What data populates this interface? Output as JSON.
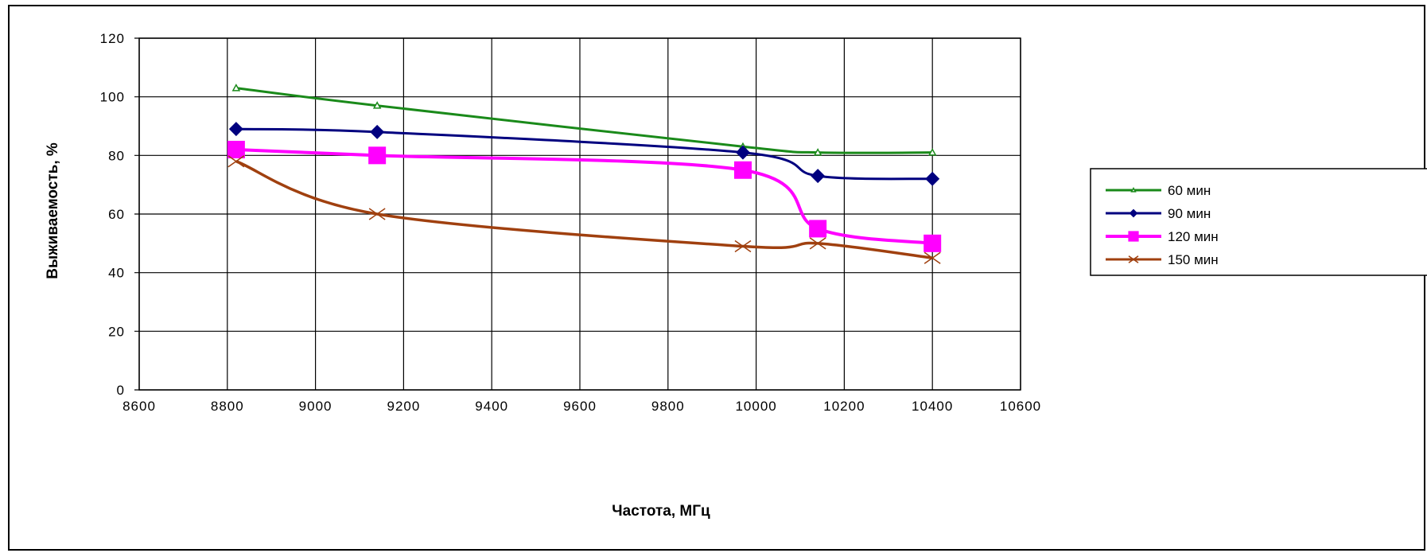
{
  "chart_data": {
    "type": "line",
    "title": "",
    "xlabel": "Частота,  МГц",
    "ylabel": "Выживаемость, %",
    "xlim": [
      8600,
      10600
    ],
    "ylim": [
      0,
      120
    ],
    "x_ticks": [
      "8600",
      "8800",
      "9000",
      "9200",
      "9400",
      "9600",
      "9800",
      "10000",
      "10200",
      "10400",
      "10600"
    ],
    "y_ticks": [
      "0",
      "20",
      "40",
      "60",
      "80",
      "100",
      "120"
    ],
    "grid": true,
    "legend_position": "right",
    "series": [
      {
        "name": "60 мин",
        "color": "#1a8a1a",
        "marker": "triangle",
        "points": [
          [
            8820,
            103
          ],
          [
            9140,
            97
          ],
          [
            9970,
            83
          ],
          [
            10140,
            81
          ],
          [
            10400,
            81
          ]
        ]
      },
      {
        "name": "90 мин",
        "color": "#00007f",
        "marker": "diamond",
        "points": [
          [
            8820,
            89
          ],
          [
            9140,
            88
          ],
          [
            9970,
            81
          ],
          [
            10140,
            73
          ],
          [
            10400,
            72
          ]
        ]
      },
      {
        "name": "120 мин",
        "color": "#ff00ff",
        "marker": "square",
        "points": [
          [
            8820,
            82
          ],
          [
            9140,
            80
          ],
          [
            9970,
            75
          ],
          [
            10140,
            55
          ],
          [
            10400,
            50
          ]
        ]
      },
      {
        "name": "150 мин",
        "color": "#a0400f",
        "marker": "x",
        "points": [
          [
            8820,
            78
          ],
          [
            9140,
            60
          ],
          [
            9970,
            49
          ],
          [
            10140,
            50
          ],
          [
            10400,
            45
          ]
        ]
      }
    ]
  }
}
